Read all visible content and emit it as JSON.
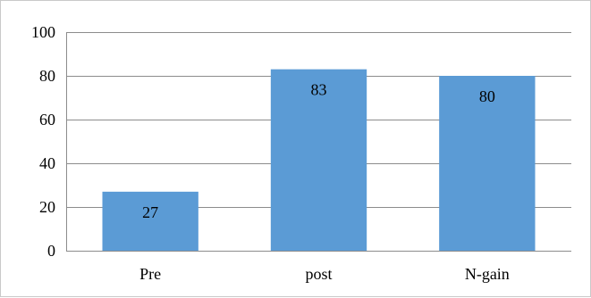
{
  "chart_data": {
    "type": "bar",
    "categories": [
      "Pre",
      "post",
      "N-gain"
    ],
    "values": [
      27,
      83,
      80
    ],
    "data_labels": [
      "27",
      "83",
      "80"
    ],
    "title": "",
    "xlabel": "",
    "ylabel": "",
    "ylim": [
      0,
      100
    ],
    "yticks": [
      0,
      20,
      40,
      60,
      80,
      100
    ],
    "ytick_labels": [
      "0",
      "20",
      "40",
      "60",
      "80",
      "100"
    ],
    "grid": true,
    "legend": "none",
    "bar_color": "#5b9bd5",
    "grid_color": "#8c8c8c",
    "data_label_position": "inside-top"
  }
}
